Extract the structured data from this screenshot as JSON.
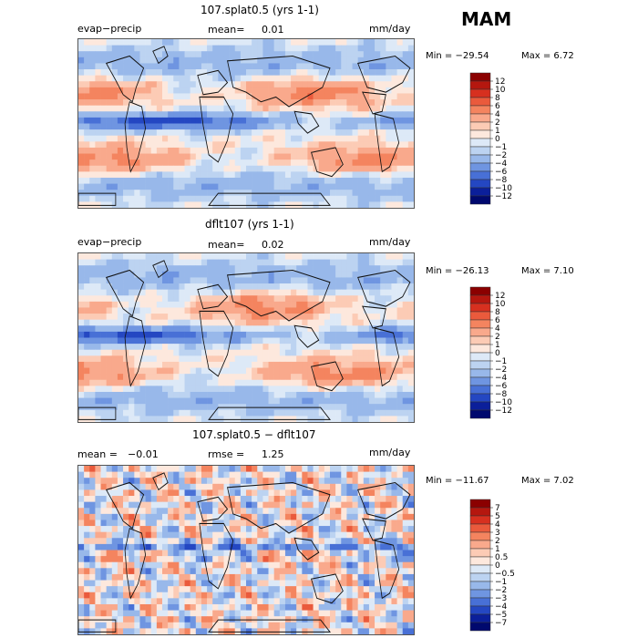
{
  "season": "MAM",
  "chart_data": [
    {
      "type": "heatmap",
      "title": "107.splat0.5 (yrs 1-1)",
      "left_label": "evap−precip",
      "mean_label": "mean=",
      "mean_value": "0.01",
      "units": "mm/day",
      "min_label": "Min = −29.54",
      "max_label": "Max =    6.72",
      "min": -29.54,
      "max": 6.72,
      "levels": [
        "12",
        "10",
        "8",
        "6",
        "4",
        "2",
        "1",
        "0",
        "−1",
        "−2",
        "−4",
        "−6",
        "−8",
        "−10",
        "−12"
      ],
      "colors": [
        "#8b0000",
        "#b5170f",
        "#d7301f",
        "#ea5a3c",
        "#f4845f",
        "#f9a98c",
        "#fccbb5",
        "#fde8dd",
        "#dde9f7",
        "#bcd3f1",
        "#98b8ea",
        "#6f95e1",
        "#4870d6",
        "#2447c2",
        "#0b1f9a",
        "#00096e"
      ]
    },
    {
      "type": "heatmap",
      "title": "dflt107 (yrs 1-1)",
      "left_label": "evap−precip",
      "mean_label": "mean=",
      "mean_value": "0.02",
      "units": "mm/day",
      "min_label": "Min = −26.13",
      "max_label": "Max =    7.10",
      "min": -26.13,
      "max": 7.1,
      "levels": [
        "12",
        "10",
        "8",
        "6",
        "4",
        "2",
        "1",
        "0",
        "−1",
        "−2",
        "−4",
        "−6",
        "−8",
        "−10",
        "−12"
      ],
      "colors": [
        "#8b0000",
        "#b5170f",
        "#d7301f",
        "#ea5a3c",
        "#f4845f",
        "#f9a98c",
        "#fccbb5",
        "#fde8dd",
        "#dde9f7",
        "#bcd3f1",
        "#98b8ea",
        "#6f95e1",
        "#4870d6",
        "#2447c2",
        "#0b1f9a",
        "#00096e"
      ]
    },
    {
      "type": "heatmap",
      "title": "107.splat0.5 − dflt107",
      "left_label": "mean =",
      "left_value": "−0.01",
      "mean_label": "rmse =",
      "mean_value": "1.25",
      "units": "mm/day",
      "min_label": "Min = −11.67",
      "max_label": "Max =    7.02",
      "min": -11.67,
      "max": 7.02,
      "levels": [
        "7",
        "5",
        "4",
        "3",
        "2",
        "1",
        "0.5",
        "0",
        "−0.5",
        "−1",
        "−2",
        "−3",
        "−4",
        "−5",
        "−7"
      ],
      "colors": [
        "#8b0000",
        "#b5170f",
        "#d7301f",
        "#ea5a3c",
        "#f4845f",
        "#f9a98c",
        "#fccbb5",
        "#fde8dd",
        "#dde9f7",
        "#bcd3f1",
        "#98b8ea",
        "#6f95e1",
        "#4870d6",
        "#2447c2",
        "#0b1f9a",
        "#00096e"
      ]
    }
  ]
}
